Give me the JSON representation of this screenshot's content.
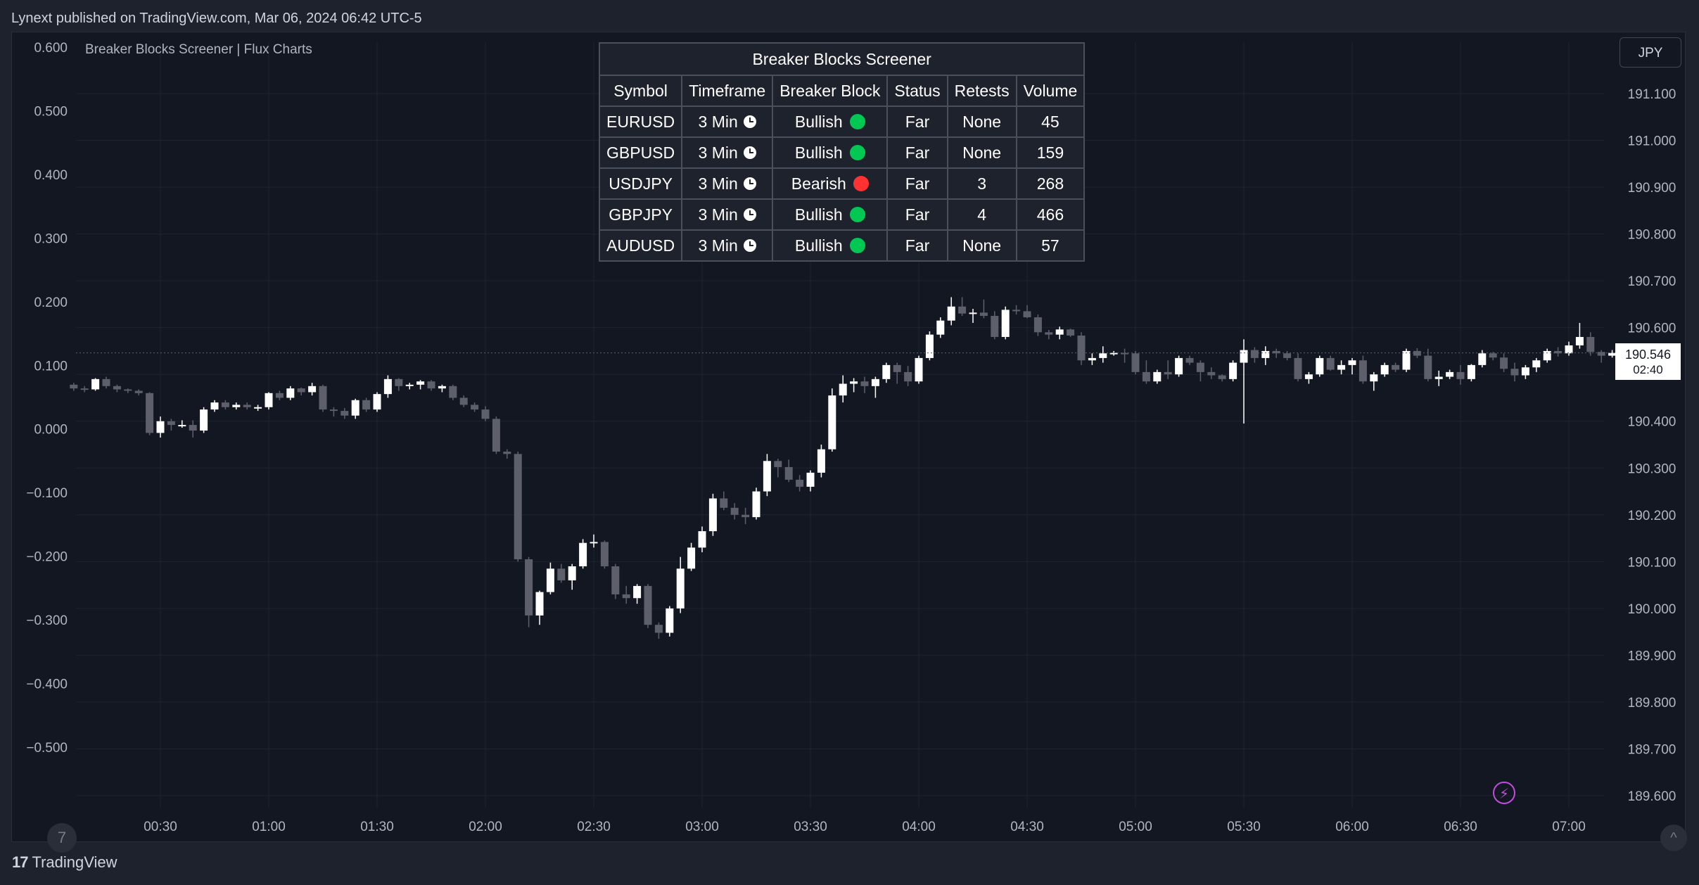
{
  "publish_info": "Lynext published on TradingView.com, Mar 06, 2024 06:42 UTC-5",
  "indicator_title": "Breaker Blocks Screener | Flux Charts",
  "currency_label": "JPY",
  "last_price": "190.546",
  "countdown": "02:40",
  "branding": "TradingView",
  "logo_mark": "17",
  "goto_glyph": "7",
  "scroll_glyph": "^",
  "bolt_glyph": "⚡",
  "colors": {
    "up": "#ffffff",
    "down": "#5d606b",
    "bullish_dot": "#00c853",
    "bearish_dot": "#ff3131",
    "background": "#131722",
    "grid": "#1f2330",
    "axis_text": "#b2b5be"
  },
  "screener": {
    "title": "Breaker Blocks Screener",
    "headers": [
      "Symbol",
      "Timeframe",
      "Breaker Block",
      "Status",
      "Retests",
      "Volume"
    ],
    "rows": [
      {
        "symbol": "EURUSD",
        "timeframe": "3 Min",
        "block": "Bullish",
        "status": "Far",
        "retests": "None",
        "volume": "45"
      },
      {
        "symbol": "GBPUSD",
        "timeframe": "3 Min",
        "block": "Bullish",
        "status": "Far",
        "retests": "None",
        "volume": "159"
      },
      {
        "symbol": "USDJPY",
        "timeframe": "3 Min",
        "block": "Bearish",
        "status": "Far",
        "retests": "3",
        "volume": "268"
      },
      {
        "symbol": "GBPJPY",
        "timeframe": "3 Min",
        "block": "Bullish",
        "status": "Far",
        "retests": "4",
        "volume": "466"
      },
      {
        "symbol": "AUDUSD",
        "timeframe": "3 Min",
        "block": "Bullish",
        "status": "Far",
        "retests": "None",
        "volume": "57"
      }
    ]
  },
  "chart_data": {
    "type": "candlestick",
    "title": "",
    "x_ticks": [
      "00:30",
      "01:00",
      "01:30",
      "02:00",
      "02:30",
      "03:00",
      "03:30",
      "04:00",
      "04:30",
      "05:00",
      "05:30",
      "06:00",
      "06:30",
      "07:00"
    ],
    "left_axis": {
      "ticks": [
        "0.600",
        "0.500",
        "0.400",
        "0.300",
        "0.200",
        "0.100",
        "0.000",
        "−0.100",
        "−0.200",
        "−0.300",
        "−0.400",
        "−0.500"
      ],
      "range": [
        -0.5,
        0.6
      ]
    },
    "right_axis": {
      "ticks": [
        "191.100",
        "191.000",
        "190.900",
        "190.800",
        "190.700",
        "190.600",
        "190.500",
        "190.400",
        "190.300",
        "190.200",
        "190.100",
        "190.000",
        "189.900",
        "189.800",
        "189.700",
        "189.600"
      ],
      "range": [
        189.6,
        191.1
      ]
    },
    "x_range": [
      "00:06",
      "07:06"
    ],
    "grid": true,
    "candle_interval_min": 3,
    "start_time": "00:06",
    "candles": [
      [
        190.478,
        190.482,
        190.465,
        190.47
      ],
      [
        190.47,
        190.475,
        190.462,
        190.468
      ],
      [
        190.468,
        190.492,
        190.465,
        190.49
      ],
      [
        190.49,
        190.495,
        190.47,
        190.475
      ],
      [
        190.475,
        190.478,
        190.462,
        190.468
      ],
      [
        190.468,
        190.47,
        190.46,
        190.465
      ],
      [
        190.465,
        190.468,
        190.455,
        190.46
      ],
      [
        190.46,
        190.462,
        190.37,
        190.375
      ],
      [
        190.375,
        190.41,
        190.365,
        190.4
      ],
      [
        190.4,
        190.405,
        190.38,
        190.392
      ],
      [
        190.392,
        190.402,
        190.386,
        190.392
      ],
      [
        190.392,
        190.402,
        190.365,
        190.38
      ],
      [
        190.38,
        190.43,
        190.375,
        190.425
      ],
      [
        190.425,
        190.445,
        190.42,
        190.44
      ],
      [
        190.44,
        190.445,
        190.425,
        190.43
      ],
      [
        190.43,
        190.44,
        190.425,
        190.435
      ],
      [
        190.435,
        190.44,
        190.425,
        190.43
      ],
      [
        190.43,
        190.435,
        190.422,
        190.43
      ],
      [
        190.43,
        190.462,
        190.425,
        190.46
      ],
      [
        190.46,
        190.465,
        190.445,
        190.45
      ],
      [
        190.45,
        190.475,
        190.445,
        190.47
      ],
      [
        190.47,
        190.472,
        190.455,
        190.462
      ],
      [
        190.462,
        190.482,
        190.455,
        190.475
      ],
      [
        190.475,
        190.478,
        190.42,
        190.425
      ],
      [
        190.425,
        190.43,
        190.41,
        190.422
      ],
      [
        190.422,
        190.428,
        190.405,
        190.412
      ],
      [
        190.412,
        190.448,
        190.405,
        190.445
      ],
      [
        190.445,
        190.45,
        190.42,
        190.425
      ],
      [
        190.425,
        190.462,
        190.42,
        190.458
      ],
      [
        190.458,
        190.498,
        190.45,
        190.49
      ],
      [
        190.49,
        190.492,
        190.465,
        190.475
      ],
      [
        190.475,
        190.482,
        190.468,
        190.478
      ],
      [
        190.478,
        190.488,
        190.468,
        190.485
      ],
      [
        190.485,
        190.488,
        190.465,
        190.47
      ],
      [
        190.47,
        190.478,
        190.462,
        190.475
      ],
      [
        190.475,
        190.478,
        190.445,
        190.45
      ],
      [
        190.45,
        190.455,
        190.43,
        190.435
      ],
      [
        190.435,
        190.44,
        190.42,
        190.425
      ],
      [
        190.425,
        190.432,
        190.4,
        190.405
      ],
      [
        190.405,
        190.41,
        190.33,
        190.335
      ],
      [
        190.335,
        190.34,
        190.32,
        190.33
      ],
      [
        190.33,
        190.335,
        190.1,
        190.105
      ],
      [
        190.105,
        190.11,
        189.96,
        189.985
      ],
      [
        189.985,
        190.038,
        189.965,
        190.035
      ],
      [
        190.035,
        190.098,
        190.03,
        190.085
      ],
      [
        190.085,
        190.095,
        190.055,
        190.06
      ],
      [
        190.06,
        190.095,
        190.04,
        190.09
      ],
      [
        190.09,
        190.148,
        190.085,
        190.14
      ],
      [
        190.14,
        190.158,
        190.13,
        190.142
      ],
      [
        190.142,
        190.145,
        190.085,
        190.09
      ],
      [
        190.09,
        190.095,
        190.02,
        190.03
      ],
      [
        190.03,
        190.048,
        190.01,
        190.022
      ],
      [
        190.022,
        190.052,
        190.01,
        190.048
      ],
      [
        190.048,
        190.052,
        189.958,
        189.965
      ],
      [
        189.965,
        189.97,
        189.935,
        189.948
      ],
      [
        189.948,
        190.005,
        189.94,
        190.0
      ],
      [
        190.0,
        190.11,
        189.99,
        190.085
      ],
      [
        190.085,
        190.14,
        190.08,
        190.13
      ],
      [
        190.13,
        190.175,
        190.12,
        190.165
      ],
      [
        190.165,
        190.245,
        190.155,
        190.235
      ],
      [
        190.235,
        190.25,
        190.21,
        190.215
      ],
      [
        190.215,
        190.225,
        190.19,
        190.2
      ],
      [
        190.2,
        190.215,
        190.18,
        190.195
      ],
      [
        190.195,
        190.258,
        190.19,
        190.25
      ],
      [
        190.25,
        190.33,
        190.24,
        190.315
      ],
      [
        190.315,
        190.32,
        190.28,
        190.302
      ],
      [
        190.302,
        190.318,
        190.27,
        190.275
      ],
      [
        190.275,
        190.285,
        190.25,
        190.26
      ],
      [
        190.26,
        190.295,
        190.25,
        190.29
      ],
      [
        190.29,
        190.35,
        190.28,
        190.34
      ],
      [
        190.34,
        190.47,
        190.335,
        190.455
      ],
      [
        190.455,
        190.498,
        190.44,
        190.48
      ],
      [
        190.48,
        190.492,
        190.462,
        190.485
      ],
      [
        190.485,
        190.495,
        190.46,
        190.475
      ],
      [
        190.475,
        190.495,
        190.45,
        190.49
      ],
      [
        190.49,
        190.525,
        190.482,
        190.52
      ],
      [
        190.52,
        190.525,
        190.48,
        190.505
      ],
      [
        190.505,
        190.518,
        190.475,
        190.485
      ],
      [
        190.485,
        190.54,
        190.48,
        190.535
      ],
      [
        190.535,
        190.592,
        190.53,
        190.585
      ],
      [
        190.585,
        190.622,
        190.578,
        190.615
      ],
      [
        190.615,
        190.665,
        190.605,
        190.645
      ],
      [
        190.645,
        190.665,
        190.625,
        190.63
      ],
      [
        190.63,
        190.64,
        190.61,
        190.632
      ],
      [
        190.632,
        190.66,
        190.62,
        190.625
      ],
      [
        190.625,
        190.635,
        190.575,
        190.58
      ],
      [
        190.58,
        190.645,
        190.575,
        190.638
      ],
      [
        190.638,
        190.648,
        190.628,
        190.635
      ],
      [
        190.635,
        190.648,
        190.62,
        190.622
      ],
      [
        190.622,
        190.628,
        190.582,
        190.59
      ],
      [
        190.59,
        190.595,
        190.575,
        190.585
      ],
      [
        190.585,
        190.602,
        190.575,
        190.596
      ],
      [
        190.596,
        190.598,
        190.58,
        190.583
      ],
      [
        190.583,
        190.59,
        190.52,
        190.53
      ],
      [
        190.53,
        190.545,
        190.52,
        190.535
      ],
      [
        190.535,
        190.56,
        190.525,
        190.545
      ],
      [
        190.545,
        190.55,
        190.54,
        190.546
      ],
      [
        190.546,
        190.555,
        190.525,
        190.545
      ],
      [
        190.545,
        190.55,
        190.5,
        190.505
      ],
      [
        190.505,
        190.53,
        190.48,
        190.485
      ],
      [
        190.485,
        190.51,
        190.48,
        190.505
      ],
      [
        190.505,
        190.53,
        190.49,
        190.5
      ],
      [
        190.5,
        190.54,
        190.495,
        190.535
      ],
      [
        190.535,
        190.54,
        190.52,
        190.525
      ],
      [
        190.525,
        190.53,
        190.485,
        190.505
      ],
      [
        190.505,
        190.515,
        190.49,
        190.498
      ],
      [
        190.498,
        190.5,
        190.485,
        190.49
      ],
      [
        190.49,
        190.53,
        190.485,
        190.525
      ],
      [
        190.525,
        190.575,
        190.395,
        190.552
      ],
      [
        190.552,
        190.558,
        190.525,
        190.535
      ],
      [
        190.535,
        190.56,
        190.52,
        190.55
      ],
      [
        190.55,
        190.555,
        190.535,
        190.545
      ],
      [
        190.545,
        190.55,
        190.53,
        190.535
      ],
      [
        190.535,
        190.545,
        190.485,
        190.49
      ],
      [
        190.49,
        190.505,
        190.48,
        190.5
      ],
      [
        190.5,
        190.54,
        190.495,
        190.535
      ],
      [
        190.535,
        190.54,
        190.508,
        190.51
      ],
      [
        190.51,
        190.53,
        190.5,
        190.52
      ],
      [
        190.52,
        190.535,
        190.5,
        190.53
      ],
      [
        190.53,
        190.54,
        190.48,
        190.485
      ],
      [
        190.485,
        190.505,
        190.465,
        190.5
      ],
      [
        190.5,
        190.525,
        190.495,
        190.52
      ],
      [
        190.52,
        190.525,
        190.505,
        190.51
      ],
      [
        190.51,
        190.555,
        190.505,
        190.55
      ],
      [
        190.55,
        190.556,
        190.535,
        190.54
      ],
      [
        190.54,
        190.555,
        190.485,
        190.49
      ],
      [
        190.49,
        190.508,
        190.475,
        190.495
      ],
      [
        190.495,
        190.51,
        190.49,
        190.505
      ],
      [
        190.505,
        190.52,
        190.478,
        190.49
      ],
      [
        190.49,
        190.522,
        190.485,
        190.52
      ],
      [
        190.52,
        190.552,
        190.515,
        190.545
      ],
      [
        190.545,
        190.548,
        190.53,
        190.536
      ],
      [
        190.536,
        190.545,
        190.505,
        190.512
      ],
      [
        190.512,
        190.525,
        190.485,
        190.498
      ],
      [
        190.498,
        190.52,
        190.49,
        190.515
      ],
      [
        190.515,
        190.535,
        190.505,
        190.53
      ],
      [
        190.53,
        190.555,
        190.525,
        190.55
      ],
      [
        190.55,
        190.558,
        190.538,
        190.545
      ],
      [
        190.545,
        190.57,
        190.54,
        190.562
      ],
      [
        190.562,
        190.61,
        190.555,
        190.58
      ],
      [
        190.58,
        190.59,
        190.54,
        190.548
      ],
      [
        190.548,
        190.552,
        190.525,
        190.54
      ],
      [
        190.54,
        190.552,
        190.536,
        190.546
      ]
    ]
  }
}
